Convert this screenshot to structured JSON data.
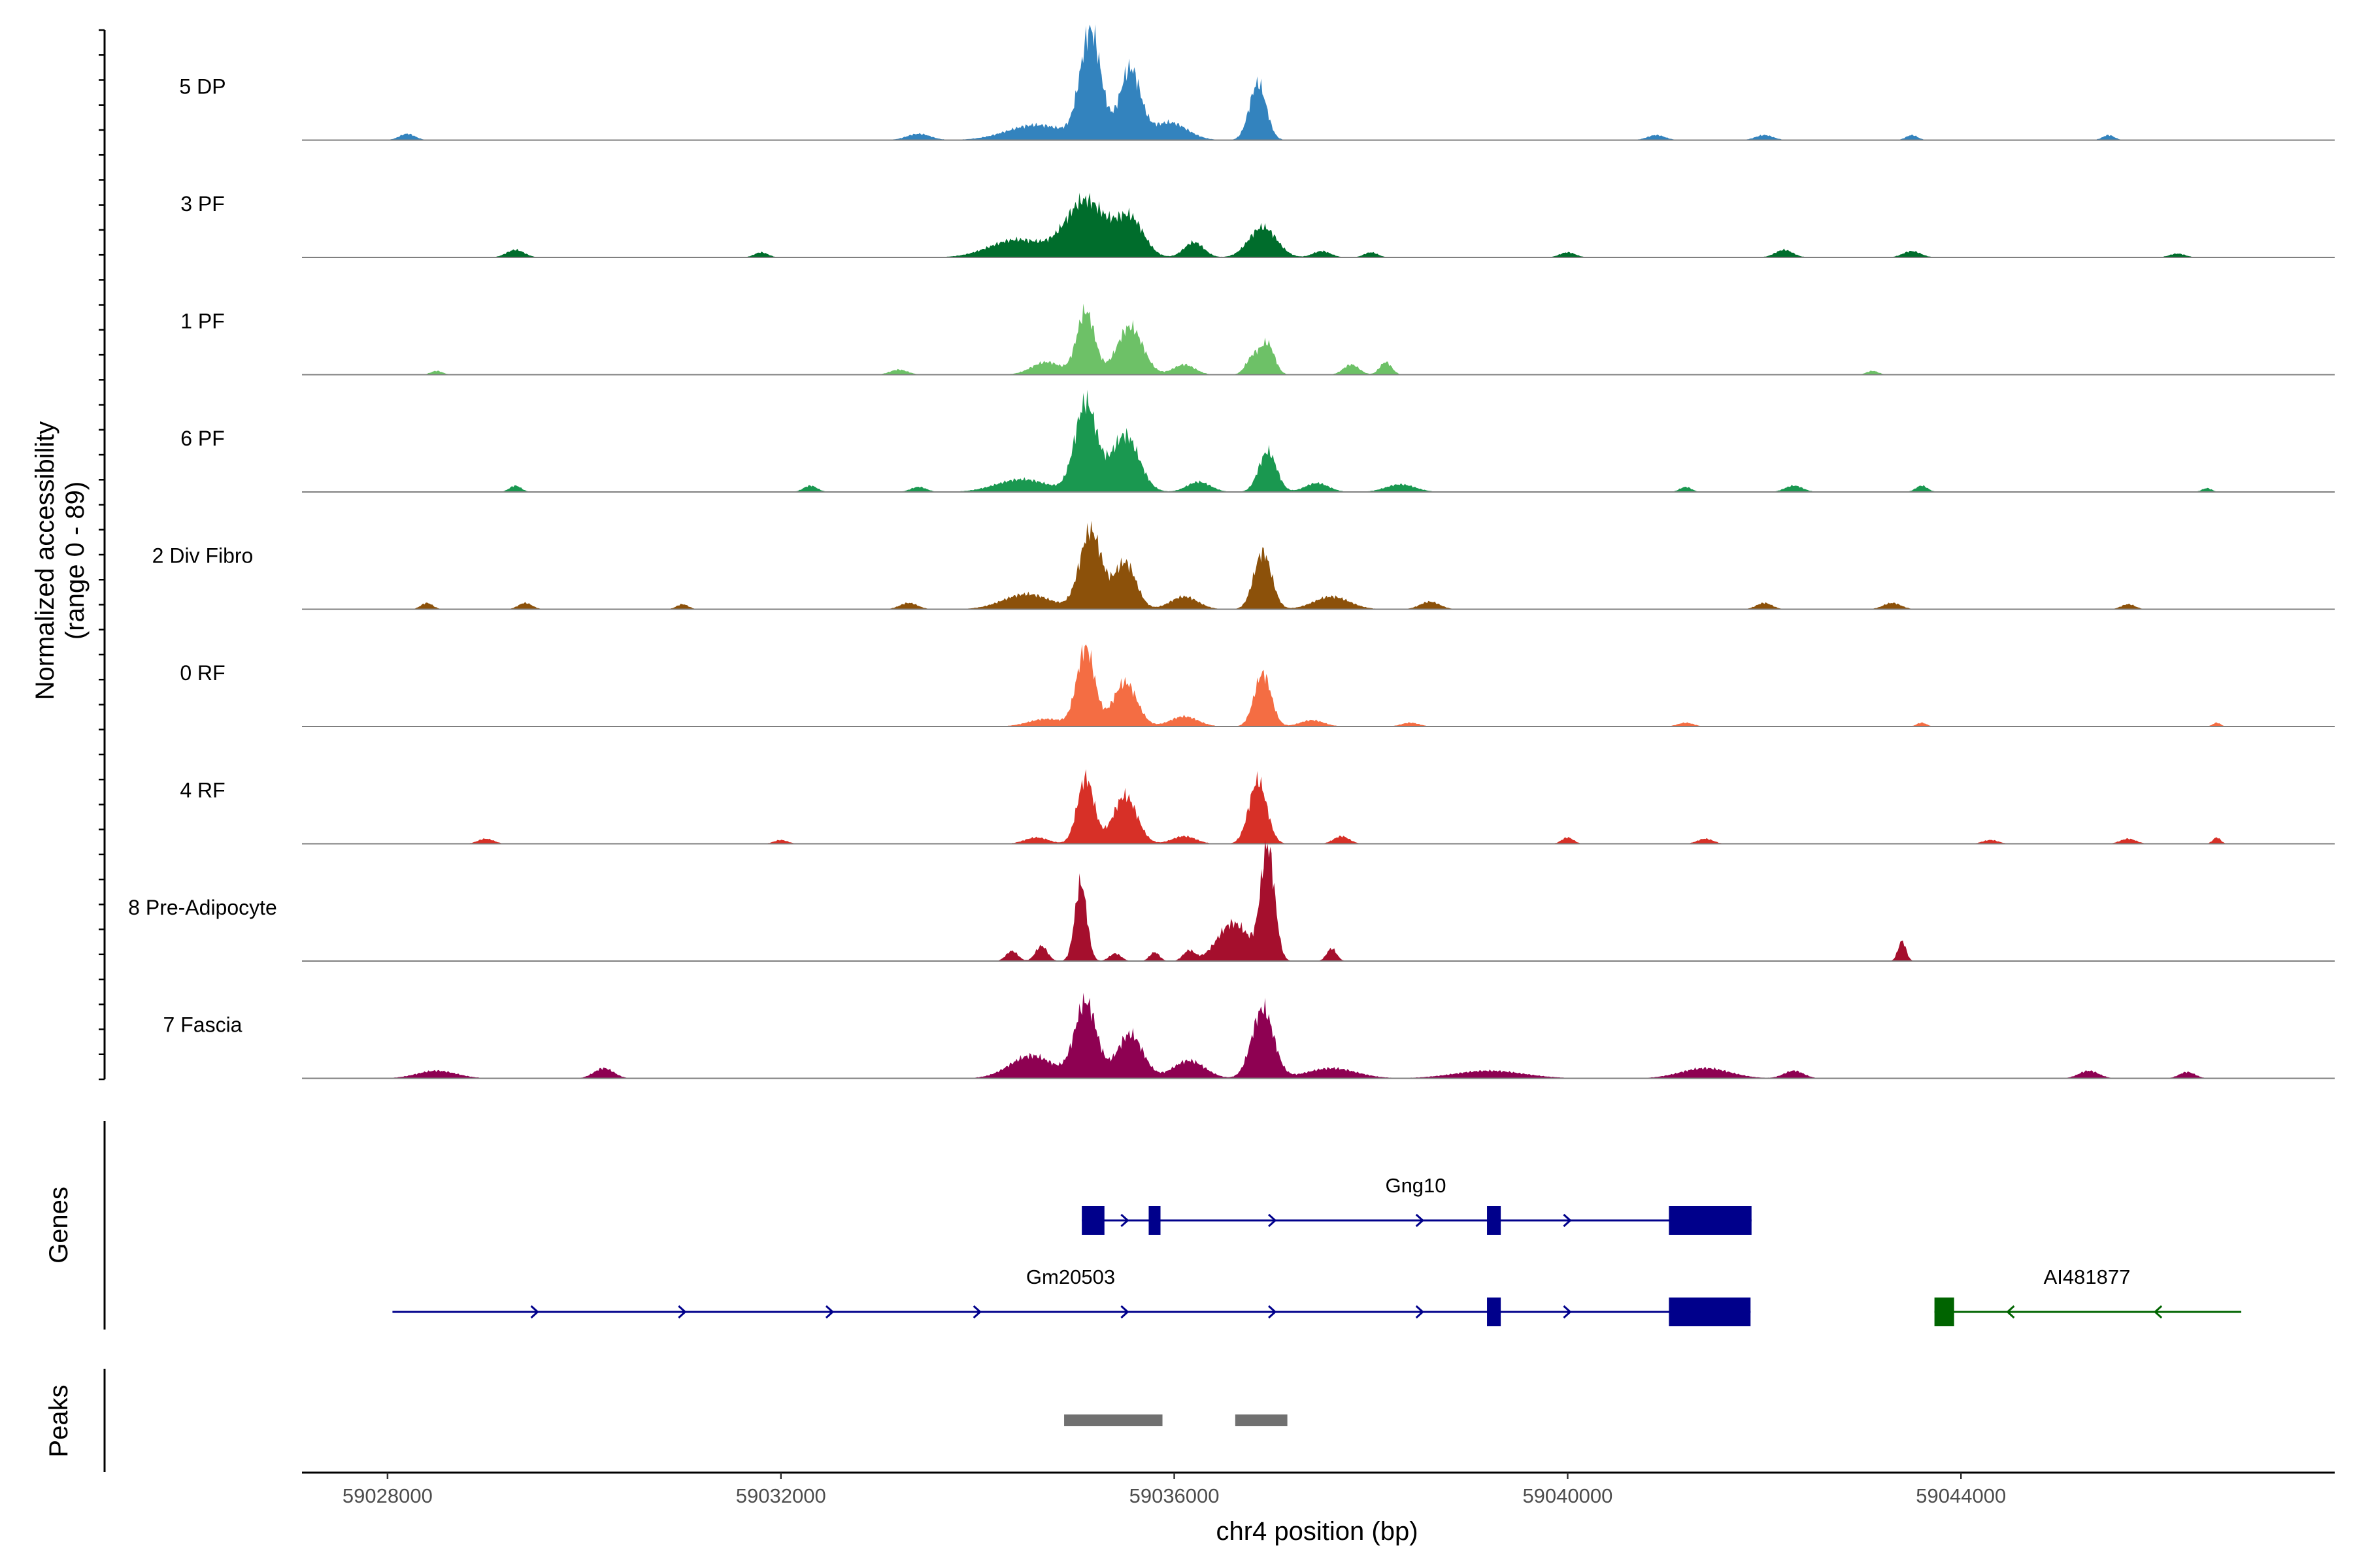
{
  "chart_data": {
    "type": "area",
    "title": "",
    "chromosome": "chr4",
    "xlabel": "chr4 position (bp)",
    "ylabel": "Normalized accessibility",
    "ylabel_sub": "(range 0 - 89)",
    "ylim": [
      0,
      89
    ],
    "xlim": [
      59027130,
      59047800
    ],
    "x_ticks": [
      59028000,
      59032000,
      59036000,
      59040000,
      59044000
    ],
    "x_tick_labels": [
      "59028000",
      "59032000",
      "59036000",
      "59040000",
      "59044000"
    ],
    "signal_start": 59027950,
    "signal_end": 59046950,
    "tracks": [
      {
        "name": "5 DP",
        "color": "#3383BE",
        "peaks": [
          [
            59035150,
            105,
            85
          ],
          [
            59035550,
            105,
            56
          ],
          [
            59036850,
            85,
            45
          ],
          [
            59034600,
            300,
            12
          ],
          [
            59035950,
            180,
            14
          ],
          [
            59028200,
            80,
            5
          ],
          [
            59033400,
            120,
            5
          ],
          [
            59040900,
            90,
            4
          ],
          [
            59042000,
            90,
            4
          ],
          [
            59043500,
            60,
            4
          ],
          [
            59045500,
            60,
            4
          ]
        ]
      },
      {
        "name": "3 PF",
        "color": "#006D2C",
        "peaks": [
          [
            59035100,
            200,
            45
          ],
          [
            59035550,
            140,
            30
          ],
          [
            59036900,
            140,
            24
          ],
          [
            59034400,
            280,
            14
          ],
          [
            59036200,
            100,
            12
          ],
          [
            59029300,
            90,
            6
          ],
          [
            59031800,
            70,
            4
          ],
          [
            59037500,
            90,
            5
          ],
          [
            59038000,
            70,
            4
          ],
          [
            59040000,
            80,
            4
          ],
          [
            59042200,
            90,
            6
          ],
          [
            59043500,
            90,
            5
          ],
          [
            59046200,
            80,
            3
          ]
        ]
      },
      {
        "name": "1 PF",
        "color": "#6DC167",
        "peaks": [
          [
            59035100,
            90,
            50
          ],
          [
            59035550,
            130,
            38
          ],
          [
            59036800,
            70,
            14
          ],
          [
            59036950,
            70,
            24
          ],
          [
            59034700,
            150,
            10
          ],
          [
            59036100,
            110,
            8
          ],
          [
            59037800,
            80,
            8
          ],
          [
            59038150,
            60,
            10
          ],
          [
            59033200,
            90,
            4
          ],
          [
            59028500,
            60,
            3
          ],
          [
            59043100,
            60,
            3
          ]
        ]
      },
      {
        "name": "6 PF",
        "color": "#1A9850",
        "peaks": [
          [
            59035100,
            110,
            70
          ],
          [
            59035500,
            140,
            45
          ],
          [
            59036950,
            90,
            32
          ],
          [
            59034450,
            260,
            10
          ],
          [
            59036250,
            120,
            8
          ],
          [
            59037450,
            120,
            7
          ],
          [
            59038300,
            150,
            6
          ],
          [
            59029300,
            60,
            5
          ],
          [
            59032300,
            70,
            5
          ],
          [
            59033400,
            80,
            4
          ],
          [
            59042300,
            90,
            5
          ],
          [
            59043600,
            60,
            5
          ],
          [
            59041200,
            60,
            4
          ],
          [
            59046500,
            50,
            3
          ]
        ]
      },
      {
        "name": "2 Div Fibro",
        "color": "#8C510A",
        "peaks": [
          [
            59035150,
            110,
            62
          ],
          [
            59035500,
            110,
            37
          ],
          [
            59036900,
            90,
            45
          ],
          [
            59034500,
            240,
            12
          ],
          [
            59036100,
            140,
            10
          ],
          [
            59037600,
            180,
            10
          ],
          [
            59038600,
            100,
            6
          ],
          [
            59033300,
            90,
            5
          ],
          [
            59028400,
            60,
            5
          ],
          [
            59029400,
            70,
            5
          ],
          [
            59031000,
            60,
            4
          ],
          [
            59042000,
            80,
            5
          ],
          [
            59043300,
            90,
            5
          ],
          [
            59045700,
            70,
            4
          ]
        ]
      },
      {
        "name": "0 RF",
        "color": "#F46D43",
        "peaks": [
          [
            59035100,
            90,
            62
          ],
          [
            59035500,
            120,
            35
          ],
          [
            59036900,
            85,
            42
          ],
          [
            59034700,
            180,
            6
          ],
          [
            59036100,
            140,
            8
          ],
          [
            59037400,
            120,
            5
          ],
          [
            59038400,
            90,
            3
          ],
          [
            59041200,
            80,
            3
          ],
          [
            59043600,
            50,
            3
          ],
          [
            59046600,
            40,
            3
          ]
        ]
      },
      {
        "name": "4 RF",
        "color": "#D73027",
        "peaks": [
          [
            59035100,
            85,
            52
          ],
          [
            59035500,
            120,
            38
          ],
          [
            59036850,
            90,
            50
          ],
          [
            59034600,
            120,
            5
          ],
          [
            59036100,
            120,
            6
          ],
          [
            59037700,
            80,
            6
          ],
          [
            59029000,
            80,
            4
          ],
          [
            59032000,
            70,
            3
          ],
          [
            59040000,
            60,
            5
          ],
          [
            59041400,
            80,
            4
          ],
          [
            59044300,
            80,
            3
          ],
          [
            59045700,
            80,
            4
          ],
          [
            59046600,
            40,
            5
          ]
        ]
      },
      {
        "name": "8 Pre-Adipocyte",
        "color": "#A50F2D",
        "peaks": [
          [
            59035050,
            60,
            62
          ],
          [
            59036950,
            70,
            89
          ],
          [
            59036600,
            160,
            30
          ],
          [
            59034350,
            60,
            8
          ],
          [
            59034650,
            60,
            12
          ],
          [
            59035400,
            60,
            6
          ],
          [
            59035800,
            50,
            7
          ],
          [
            59036150,
            60,
            8
          ],
          [
            59037600,
            50,
            10
          ],
          [
            59043400,
            40,
            16
          ]
        ]
      },
      {
        "name": "7 Fascia",
        "color": "#8E0152",
        "peaks": [
          [
            59035100,
            110,
            60
          ],
          [
            59035550,
            130,
            35
          ],
          [
            59036900,
            110,
            55
          ],
          [
            59034550,
            220,
            18
          ],
          [
            59036150,
            160,
            14
          ],
          [
            59037600,
            250,
            8
          ],
          [
            59028500,
            200,
            6
          ],
          [
            59030200,
            100,
            8
          ],
          [
            59039200,
            350,
            6
          ],
          [
            59041400,
            250,
            8
          ],
          [
            59042300,
            100,
            6
          ],
          [
            59045300,
            100,
            6
          ],
          [
            59046300,
            80,
            5
          ]
        ]
      }
    ],
    "genes": [
      {
        "name": "Gng10",
        "strand": "+",
        "color": "#00008B",
        "start": 59035060,
        "end": 59041870,
        "exons": [
          [
            59035060,
            59035290
          ],
          [
            59035740,
            59035860
          ],
          [
            59039180,
            59039320
          ],
          [
            59041030,
            59041870
          ]
        ]
      },
      {
        "name": "Gm20503",
        "strand": "+",
        "color": "#00008B",
        "start": 59028050,
        "end": 59041860,
        "exons": [
          [
            59039180,
            59039320
          ],
          [
            59041030,
            59041860
          ]
        ]
      },
      {
        "name": "AI481877",
        "strand": "-",
        "color": "#006400",
        "start": 59043730,
        "end": 59046850,
        "exons": [
          [
            59043730,
            59043930
          ]
        ]
      }
    ],
    "peak_regions": [
      [
        59034880,
        59035880
      ],
      [
        59036620,
        59037150
      ]
    ],
    "gene_track_label": "Genes",
    "peak_track_label": "Peaks"
  }
}
